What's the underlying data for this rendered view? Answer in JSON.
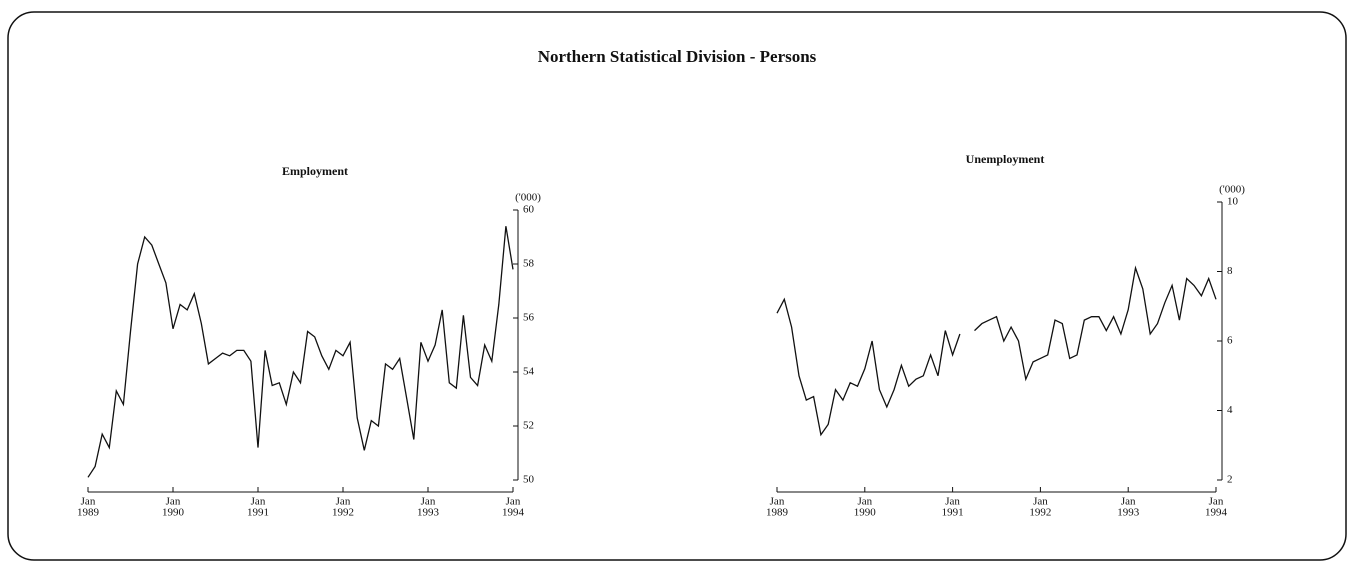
{
  "title": "Northern Statistical Division - Persons",
  "chart_data": [
    {
      "type": "line",
      "title": "Employment",
      "y_label": "('000)",
      "color": "#111111",
      "x": [
        "1989-01",
        "1989-02",
        "1989-03",
        "1989-04",
        "1989-05",
        "1989-06",
        "1989-07",
        "1989-08",
        "1989-09",
        "1989-10",
        "1989-11",
        "1989-12",
        "1990-01",
        "1990-02",
        "1990-03",
        "1990-04",
        "1990-05",
        "1990-06",
        "1990-07",
        "1990-08",
        "1990-09",
        "1990-10",
        "1990-11",
        "1990-12",
        "1991-01",
        "1991-02",
        "1991-03",
        "1991-04",
        "1991-05",
        "1991-06",
        "1991-07",
        "1991-08",
        "1991-09",
        "1991-10",
        "1991-11",
        "1991-12",
        "1992-01",
        "1992-02",
        "1992-03",
        "1992-04",
        "1992-05",
        "1992-06",
        "1992-07",
        "1992-08",
        "1992-09",
        "1992-10",
        "1992-11",
        "1992-12",
        "1993-01",
        "1993-02",
        "1993-03",
        "1993-04",
        "1993-05",
        "1993-06",
        "1993-07",
        "1993-08",
        "1993-09",
        "1993-10",
        "1993-11",
        "1993-12",
        "1994-01"
      ],
      "values": [
        50.1,
        50.5,
        51.7,
        51.2,
        53.3,
        52.8,
        55.5,
        58.0,
        59.0,
        58.7,
        58.0,
        57.3,
        55.6,
        56.5,
        56.3,
        56.9,
        55.8,
        54.3,
        54.5,
        54.7,
        54.6,
        54.8,
        54.8,
        54.4,
        51.2,
        54.8,
        53.5,
        53.6,
        52.8,
        54.0,
        53.6,
        55.5,
        55.3,
        54.6,
        54.1,
        54.8,
        54.6,
        55.1,
        52.3,
        51.1,
        52.2,
        52.0,
        54.3,
        54.1,
        54.5,
        53.0,
        51.5,
        55.1,
        54.4,
        55.0,
        56.3,
        53.6,
        53.4,
        56.1,
        53.8,
        53.5,
        55.0,
        54.4,
        56.5,
        59.4,
        57.8
      ],
      "ylim": [
        50,
        60
      ],
      "yticks": [
        50,
        52,
        54,
        56,
        58,
        60
      ],
      "xticks": [
        {
          "value": "1989-01",
          "label": [
            "Jan",
            "1989"
          ]
        },
        {
          "value": "1990-01",
          "label": [
            "Jan",
            "1990"
          ]
        },
        {
          "value": "1991-01",
          "label": [
            "Jan",
            "1991"
          ]
        },
        {
          "value": "1992-01",
          "label": [
            "Jan",
            "1992"
          ]
        },
        {
          "value": "1993-01",
          "label": [
            "Jan",
            "1993"
          ]
        },
        {
          "value": "1994-01",
          "label": [
            "Jan",
            "1994"
          ]
        }
      ]
    },
    {
      "type": "line",
      "title": "Unemployment",
      "y_label": "('000)",
      "color": "#111111",
      "x": [
        "1989-01",
        "1989-02",
        "1989-03",
        "1989-04",
        "1989-05",
        "1989-06",
        "1989-07",
        "1989-08",
        "1989-09",
        "1989-10",
        "1989-11",
        "1989-12",
        "1990-01",
        "1990-02",
        "1990-03",
        "1990-04",
        "1990-05",
        "1990-06",
        "1990-07",
        "1990-08",
        "1990-09",
        "1990-10",
        "1990-11",
        "1990-12",
        "1991-01",
        "1991-02",
        "1991-03",
        "1991-04",
        "1991-05",
        "1991-06",
        "1991-07",
        "1991-08",
        "1991-09",
        "1991-10",
        "1991-11",
        "1991-12",
        "1992-01",
        "1992-02",
        "1992-03",
        "1992-04",
        "1992-05",
        "1992-06",
        "1992-07",
        "1992-08",
        "1992-09",
        "1992-10",
        "1992-11",
        "1992-12",
        "1993-01",
        "1993-02",
        "1993-03",
        "1993-04",
        "1993-05",
        "1993-06",
        "1993-07",
        "1993-08",
        "1993-09",
        "1993-10",
        "1993-11",
        "1993-12",
        "1994-01"
      ],
      "values": [
        6.8,
        7.2,
        6.4,
        5.0,
        4.3,
        4.4,
        3.3,
        3.6,
        4.6,
        4.3,
        4.8,
        4.7,
        5.2,
        6.0,
        4.6,
        4.1,
        4.6,
        5.3,
        4.7,
        4.9,
        5.0,
        5.6,
        5.0,
        6.3,
        5.6,
        6.2,
        null,
        6.3,
        6.5,
        6.6,
        6.7,
        6.0,
        6.4,
        6.0,
        4.9,
        5.4,
        5.5,
        5.6,
        6.6,
        6.5,
        5.5,
        5.6,
        6.6,
        6.7,
        6.7,
        6.3,
        6.7,
        6.2,
        6.9,
        8.1,
        7.5,
        6.2,
        6.5,
        7.1,
        7.6,
        6.6,
        7.8,
        7.6,
        7.3,
        7.8,
        7.2
      ],
      "ylim": [
        2,
        10
      ],
      "yticks": [
        2,
        4,
        6,
        8,
        10
      ],
      "xticks": [
        {
          "value": "1989-01",
          "label": [
            "Jan",
            "1989"
          ]
        },
        {
          "value": "1990-01",
          "label": [
            "Jan",
            "1990"
          ]
        },
        {
          "value": "1991-01",
          "label": [
            "Jan",
            "1991"
          ]
        },
        {
          "value": "1992-01",
          "label": [
            "Jan",
            "1992"
          ]
        },
        {
          "value": "1993-01",
          "label": [
            "Jan",
            "1993"
          ]
        },
        {
          "value": "1994-01",
          "label": [
            "Jan",
            "1994"
          ]
        }
      ]
    }
  ]
}
